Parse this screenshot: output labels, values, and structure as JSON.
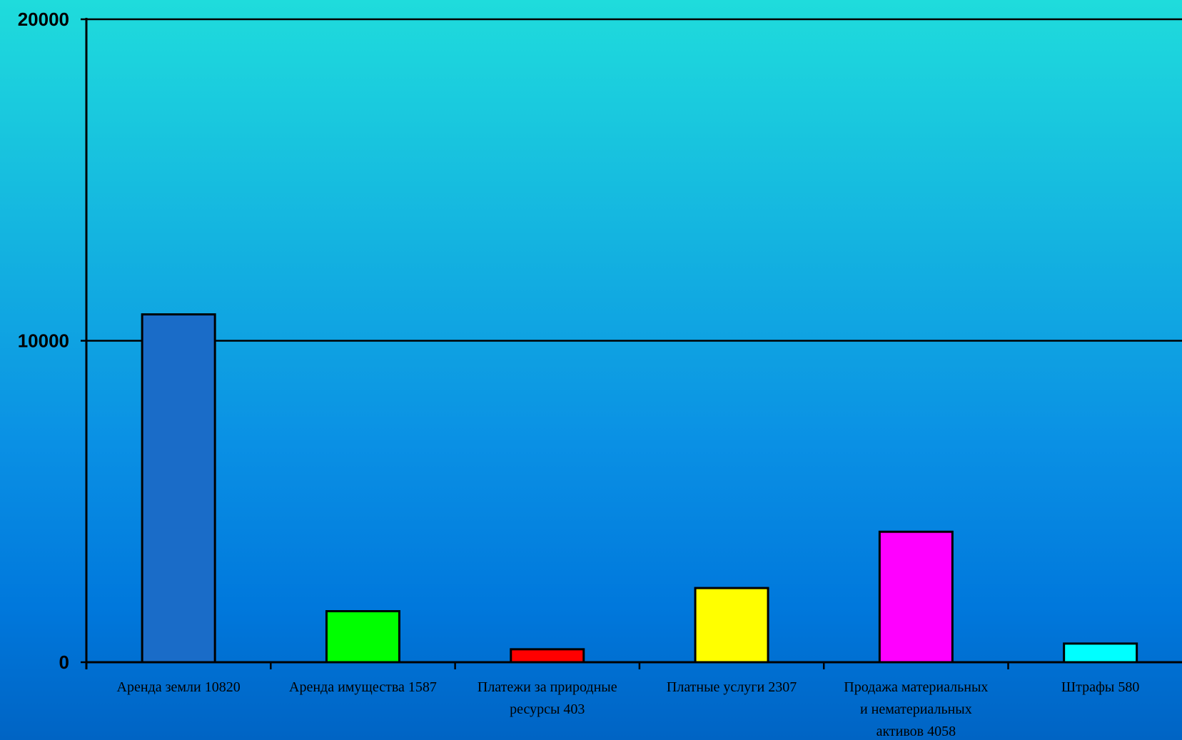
{
  "chart_data": {
    "type": "bar",
    "categories": [
      "Аренда земли 10820",
      "Аренда имущества 1587",
      "Платежи за природные ресурсы 403",
      "Платные услуги 2307",
      "Продажа материальных и нематериальных активов 4058",
      "Штрафы 580"
    ],
    "category_lines": [
      [
        "Аренда земли 10820"
      ],
      [
        "Аренда имущества 1587"
      ],
      [
        "Платежи за природные",
        "ресурсы 403"
      ],
      [
        "Платные услуги 2307"
      ],
      [
        "Продажа материальных",
        "и нематериальных",
        "активов 4058"
      ],
      [
        "Штрафы 580"
      ]
    ],
    "values": [
      10820,
      1587,
      403,
      2307,
      4058,
      580
    ],
    "colors": [
      "#1a6cc8",
      "#00ff00",
      "#ff0000",
      "#ffff00",
      "#ff00ff",
      "#00ffff"
    ],
    "title": "",
    "xlabel": "",
    "ylabel": "",
    "ylim": [
      0,
      20000
    ],
    "yticks": [
      "0",
      "10000",
      "20000"
    ],
    "grid": true,
    "legend": "none"
  }
}
